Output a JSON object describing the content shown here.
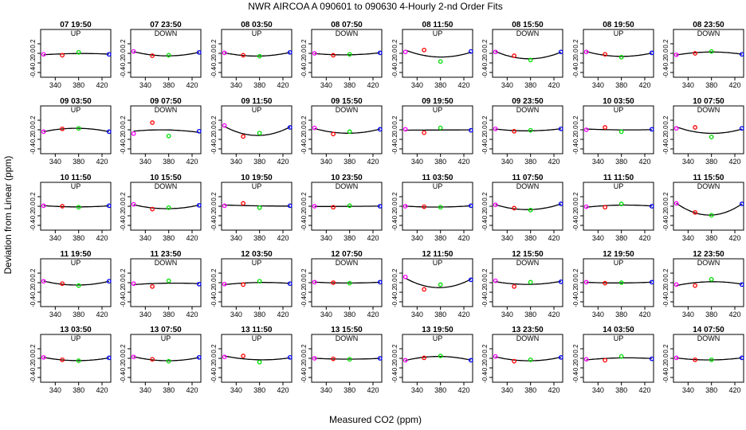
{
  "title": "NWR   AIRCOA A    090601 to 090630   4-Hourly 2-nd Order Fits",
  "xlabel": "Measured CO2 (ppm)",
  "ylabel": "Deviation from Linear (ppm)",
  "colors": {
    "low": "#ff00ff",
    "mid": "#ff0000",
    "ref": "#00dd00",
    "high": "#0000ff",
    "curve": "#000000"
  },
  "chart_data": {
    "type": "scatter",
    "layout": "5x8 small multiples",
    "xlabel": "Measured CO2 (ppm)",
    "ylabel": "Deviation from Linear (ppm)",
    "xlim": [
      315,
      435
    ],
    "ylim": [
      -0.5,
      0.5
    ],
    "xticks": [
      "340",
      "380",
      "420"
    ],
    "yticks": [
      "0.2",
      "0.0",
      "-0.2",
      "-0.4"
    ],
    "x_points": [
      320,
      352,
      380,
      432
    ],
    "panels": [
      {
        "title": "07 19:50",
        "direction": "UP",
        "y": [
          -0.02,
          -0.04,
          0.02,
          -0.02
        ]
      },
      {
        "title": "07 23:50",
        "direction": "DOWN",
        "y": [
          0.04,
          -0.05,
          -0.04,
          0.02
        ]
      },
      {
        "title": "08 03:50",
        "direction": "UP",
        "y": [
          0.01,
          -0.04,
          -0.06,
          0.02
        ]
      },
      {
        "title": "08 07:50",
        "direction": "DOWN",
        "y": [
          0.0,
          -0.04,
          -0.02,
          0.01
        ]
      },
      {
        "title": "08 11:50",
        "direction": "UP",
        "y": [
          0.03,
          0.07,
          -0.17,
          0.04
        ]
      },
      {
        "title": "08 15:50",
        "direction": "DOWN",
        "y": [
          0.03,
          -0.05,
          -0.14,
          0.03
        ]
      },
      {
        "title": "08 19:50",
        "direction": "UP",
        "y": [
          0.03,
          -0.02,
          -0.08,
          0.01
        ]
      },
      {
        "title": "08 23:50",
        "direction": "DOWN",
        "y": [
          -0.03,
          0.0,
          0.04,
          -0.02
        ]
      },
      {
        "title": "09 03:50",
        "direction": "UP",
        "y": [
          -0.04,
          0.02,
          0.03,
          -0.04
        ]
      },
      {
        "title": "09 07:50",
        "direction": "DOWN",
        "y": [
          -0.08,
          0.15,
          -0.13,
          -0.03
        ]
      },
      {
        "title": "09 11:50",
        "direction": "UP",
        "y": [
          0.09,
          -0.14,
          -0.07,
          0.05
        ]
      },
      {
        "title": "09 15:50",
        "direction": "DOWN",
        "y": [
          0.04,
          -0.09,
          -0.04,
          0.01
        ]
      },
      {
        "title": "09 19:50",
        "direction": "UP",
        "y": [
          0.01,
          -0.06,
          0.04,
          -0.01
        ]
      },
      {
        "title": "09 23:50",
        "direction": "DOWN",
        "y": [
          0.02,
          -0.03,
          -0.01,
          0.02
        ]
      },
      {
        "title": "10 03:50",
        "direction": "UP",
        "y": [
          0.0,
          0.05,
          -0.04,
          0.01
        ]
      },
      {
        "title": "10 07:50",
        "direction": "DOWN",
        "y": [
          0.03,
          0.05,
          -0.15,
          0.03
        ]
      },
      {
        "title": "10 11:50",
        "direction": "UP",
        "y": [
          0.01,
          0.0,
          -0.02,
          0.01
        ]
      },
      {
        "title": "10 15:50",
        "direction": "DOWN",
        "y": [
          0.04,
          -0.06,
          -0.03,
          0.02
        ]
      },
      {
        "title": "10 19:50",
        "direction": "UP",
        "y": [
          0.01,
          0.06,
          -0.03,
          0.01
        ]
      },
      {
        "title": "10 23:50",
        "direction": "DOWN",
        "y": [
          0.0,
          -0.02,
          0.01,
          0.0
        ]
      },
      {
        "title": "11 03:50",
        "direction": "UP",
        "y": [
          0.0,
          -0.01,
          -0.02,
          0.01
        ]
      },
      {
        "title": "11 07:50",
        "direction": "DOWN",
        "y": [
          0.03,
          -0.04,
          -0.08,
          0.05
        ]
      },
      {
        "title": "11 11:50",
        "direction": "UP",
        "y": [
          -0.01,
          -0.02,
          0.05,
          0.0
        ]
      },
      {
        "title": "11 15:50",
        "direction": "DOWN",
        "y": [
          0.06,
          -0.13,
          -0.19,
          0.05
        ]
      },
      {
        "title": "11 19:50",
        "direction": "UP",
        "y": [
          0.03,
          -0.02,
          -0.06,
          0.03
        ]
      },
      {
        "title": "11 23:50",
        "direction": "DOWN",
        "y": [
          -0.02,
          -0.08,
          0.04,
          -0.03
        ]
      },
      {
        "title": "12 03:50",
        "direction": "UP",
        "y": [
          -0.03,
          -0.04,
          0.03,
          -0.02
        ]
      },
      {
        "title": "12 07:50",
        "direction": "DOWN",
        "y": [
          0.01,
          0.0,
          -0.01,
          0.01
        ]
      },
      {
        "title": "12 11:50",
        "direction": "UP",
        "y": [
          0.12,
          -0.14,
          -0.04,
          0.06
        ]
      },
      {
        "title": "12 15:50",
        "direction": "DOWN",
        "y": [
          0.04,
          -0.08,
          0.01,
          0.02
        ]
      },
      {
        "title": "12 19:50",
        "direction": "UP",
        "y": [
          0.01,
          -0.01,
          0.0,
          0.01
        ]
      },
      {
        "title": "12 23:50",
        "direction": "DOWN",
        "y": [
          -0.04,
          -0.06,
          0.07,
          -0.04
        ]
      },
      {
        "title": "13 03:50",
        "direction": "UP",
        "y": [
          0.02,
          -0.03,
          -0.05,
          0.01
        ]
      },
      {
        "title": "13 07:50",
        "direction": "UP",
        "y": [
          0.03,
          -0.02,
          -0.06,
          0.02
        ]
      },
      {
        "title": "13 11:50",
        "direction": "UP",
        "y": [
          0.03,
          0.05,
          -0.08,
          0.02
        ]
      },
      {
        "title": "13 15:50",
        "direction": "DOWN",
        "y": [
          0.0,
          -0.01,
          -0.02,
          0.0
        ]
      },
      {
        "title": "13 19:50",
        "direction": "UP",
        "y": [
          -0.04,
          0.01,
          0.05,
          -0.04
        ]
      },
      {
        "title": "13 23:50",
        "direction": "DOWN",
        "y": [
          0.04,
          -0.06,
          -0.03,
          0.02
        ]
      },
      {
        "title": "14 03:50",
        "direction": "UP",
        "y": [
          -0.02,
          -0.04,
          0.04,
          -0.01
        ]
      },
      {
        "title": "14 07:50",
        "direction": "DOWN",
        "y": [
          0.01,
          -0.03,
          -0.03,
          0.01
        ]
      }
    ]
  }
}
